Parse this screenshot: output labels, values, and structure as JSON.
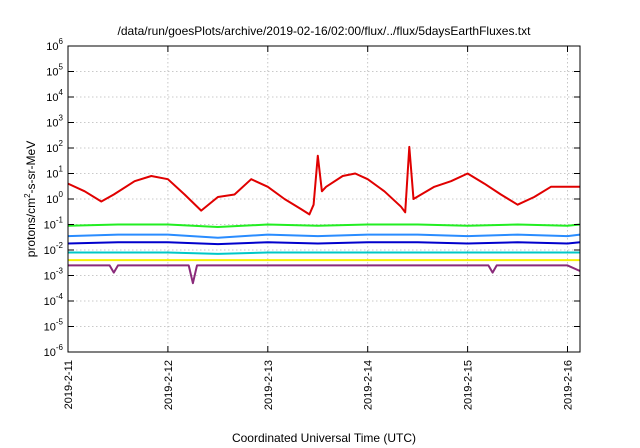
{
  "chart_data": {
    "type": "line",
    "title": "/data/run/goesPlots/archive/2019-02-16/02:00/flux/../flux/5daysEarthFluxes.txt",
    "xlabel": "Coordinated Universal Time (UTC)",
    "ylabel": "protons/cm2-s-sr-MeV",
    "ylabel_parts": [
      "protons/cm",
      "2",
      "-s-sr-MeV"
    ],
    "y_scale": "log",
    "ylim": [
      1e-06,
      1000000.0
    ],
    "y_tick_exponents": [
      -6,
      -5,
      -4,
      -3,
      -2,
      -1,
      0,
      1,
      2,
      3,
      4,
      5,
      6
    ],
    "y_tick_base": "10",
    "xlim": [
      "2019-02-11",
      "2019-02-16 03:00"
    ],
    "x_tick_labels": [
      "2019-2-11",
      "2019-2-12",
      "2019-2-13",
      "2019-2-14",
      "2019-2-15",
      "2019-2-16"
    ],
    "grid": true,
    "legend": "none",
    "series": [
      {
        "color": "#e00000",
        "x": [
          "2019-02-11 00:00",
          "2019-02-11 04:00",
          "2019-02-11 08:00",
          "2019-02-11 11:00",
          "2019-02-11 16:00",
          "2019-02-11 20:00",
          "2019-02-12 00:00",
          "2019-02-12 04:00",
          "2019-02-12 08:00",
          "2019-02-12 12:00",
          "2019-02-12 16:00",
          "2019-02-12 20:00",
          "2019-02-13 00:00",
          "2019-02-13 04:00",
          "2019-02-13 08:00",
          "2019-02-13 10:00",
          "2019-02-13 11:00",
          "2019-02-13 12:00",
          "2019-02-13 13:00",
          "2019-02-13 14:00",
          "2019-02-13 18:00",
          "2019-02-13 21:00",
          "2019-02-14 00:00",
          "2019-02-14 04:00",
          "2019-02-14 08:00",
          "2019-02-14 09:00",
          "2019-02-14 10:00",
          "2019-02-14 11:00",
          "2019-02-14 16:00",
          "2019-02-14 20:00",
          "2019-02-15 00:00",
          "2019-02-15 04:00",
          "2019-02-15 08:00",
          "2019-02-15 12:00",
          "2019-02-15 16:00",
          "2019-02-15 20:00",
          "2019-02-16 00:00",
          "2019-02-16 03:00"
        ],
        "y": [
          4,
          2,
          0.8,
          1.5,
          5,
          8,
          6,
          1.5,
          0.35,
          1.2,
          1.5,
          6,
          3,
          1,
          0.4,
          0.25,
          0.6,
          50,
          2,
          3,
          8,
          10,
          6,
          2,
          0.5,
          0.3,
          110,
          1,
          3,
          5,
          10,
          4,
          1.5,
          0.6,
          1.2,
          3,
          3,
          3
        ]
      },
      {
        "color": "#22ee22",
        "x": [
          "2019-02-11 00:00",
          "2019-02-11 12:00",
          "2019-02-12 00:00",
          "2019-02-12 12:00",
          "2019-02-13 00:00",
          "2019-02-13 12:00",
          "2019-02-14 00:00",
          "2019-02-14 12:00",
          "2019-02-15 00:00",
          "2019-02-15 12:00",
          "2019-02-16 00:00",
          "2019-02-16 03:00"
        ],
        "y": [
          0.09,
          0.1,
          0.1,
          0.08,
          0.1,
          0.09,
          0.1,
          0.1,
          0.09,
          0.1,
          0.09,
          0.1
        ]
      },
      {
        "color": "#2a8cff",
        "x": [
          "2019-02-11 00:00",
          "2019-02-11 12:00",
          "2019-02-12 00:00",
          "2019-02-12 12:00",
          "2019-02-13 00:00",
          "2019-02-13 12:00",
          "2019-02-14 00:00",
          "2019-02-14 12:00",
          "2019-02-15 00:00",
          "2019-02-15 12:00",
          "2019-02-16 00:00",
          "2019-02-16 03:00"
        ],
        "y": [
          0.035,
          0.04,
          0.04,
          0.03,
          0.04,
          0.035,
          0.04,
          0.04,
          0.035,
          0.04,
          0.035,
          0.04
        ]
      },
      {
        "color": "#0000cc",
        "x": [
          "2019-02-11 00:00",
          "2019-02-11 12:00",
          "2019-02-12 00:00",
          "2019-02-12 12:00",
          "2019-02-13 00:00",
          "2019-02-13 12:00",
          "2019-02-14 00:00",
          "2019-02-14 12:00",
          "2019-02-15 00:00",
          "2019-02-15 12:00",
          "2019-02-16 00:00",
          "2019-02-16 03:00"
        ],
        "y": [
          0.018,
          0.02,
          0.02,
          0.017,
          0.02,
          0.018,
          0.02,
          0.02,
          0.018,
          0.02,
          0.018,
          0.02
        ]
      },
      {
        "color": "#00c8c8",
        "x": [
          "2019-02-11 00:00",
          "2019-02-11 12:00",
          "2019-02-12 00:00",
          "2019-02-12 12:00",
          "2019-02-13 00:00",
          "2019-02-13 12:00",
          "2019-02-14 00:00",
          "2019-02-14 12:00",
          "2019-02-15 00:00",
          "2019-02-15 12:00",
          "2019-02-16 00:00",
          "2019-02-16 03:00"
        ],
        "y": [
          0.008,
          0.008,
          0.008,
          0.007,
          0.008,
          0.008,
          0.008,
          0.008,
          0.008,
          0.008,
          0.008,
          0.008
        ]
      },
      {
        "color": "#f5f000",
        "x": [
          "2019-02-11 00:00",
          "2019-02-12 00:00",
          "2019-02-13 00:00",
          "2019-02-14 00:00",
          "2019-02-15 00:00",
          "2019-02-16 00:00",
          "2019-02-16 03:00"
        ],
        "y": [
          0.004,
          0.004,
          0.004,
          0.004,
          0.004,
          0.004,
          0.004
        ]
      },
      {
        "color": "#8a2a7a",
        "x": [
          "2019-02-11 00:00",
          "2019-02-11 10:00",
          "2019-02-11 11:00",
          "2019-02-11 12:00",
          "2019-02-12 00:00",
          "2019-02-12 05:00",
          "2019-02-12 06:00",
          "2019-02-12 07:00",
          "2019-02-13 00:00",
          "2019-02-14 00:00",
          "2019-02-15 00:00",
          "2019-02-15 05:00",
          "2019-02-15 06:00",
          "2019-02-15 07:00",
          "2019-02-16 00:00",
          "2019-02-16 03:00"
        ],
        "y": [
          0.0025,
          0.0025,
          0.0013,
          0.0025,
          0.0025,
          0.0025,
          0.0005,
          0.0025,
          0.0025,
          0.0025,
          0.0025,
          0.0025,
          0.0013,
          0.0025,
          0.0025,
          0.0015
        ]
      }
    ]
  }
}
